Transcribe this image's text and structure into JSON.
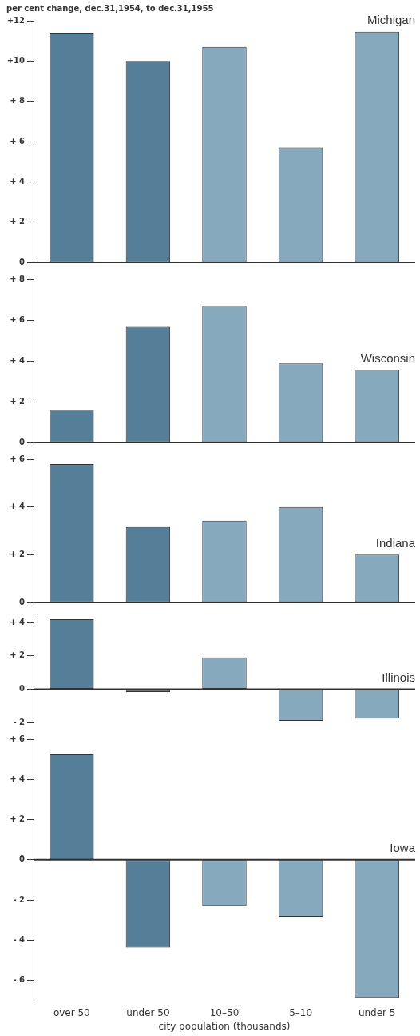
{
  "chart_data": [
    {
      "type": "bar",
      "title": "Michigan",
      "ylabel": "per cent change, dec.31,1954, to dec.31,1955",
      "categories": [
        null,
        null,
        null,
        null,
        null
      ],
      "values": [
        11.4,
        10.0,
        10.7,
        5.7,
        11.45
      ],
      "colors": [
        "#557f99",
        "#557f99",
        "#86a9bd",
        "#86a9bd",
        "#86a9bd"
      ],
      "ylim": [
        0,
        12
      ],
      "yticks": [
        {
          "value": 0,
          "label": "0"
        },
        {
          "value": 2,
          "label": "+ 2"
        },
        {
          "value": 4,
          "label": "+ 4"
        },
        {
          "value": 6,
          "label": "+ 6"
        },
        {
          "value": 8,
          "label": "+ 8"
        },
        {
          "value": 10,
          "label": "+10"
        },
        {
          "value": 12,
          "label": "+12"
        }
      ],
      "tick_labels": "y",
      "legend": false
    },
    {
      "type": "bar",
      "title": "Wisconsin",
      "categories": [
        null,
        null,
        null,
        null,
        null
      ],
      "values": [
        1.6,
        5.67,
        6.7,
        3.87,
        3.57
      ],
      "colors": [
        "#557f99",
        "#557f99",
        "#86a9bd",
        "#86a9bd",
        "#86a9bd"
      ],
      "ylim": [
        0,
        8
      ],
      "yticks": [
        {
          "value": 0,
          "label": "0"
        },
        {
          "value": 2,
          "label": "+ 2"
        },
        {
          "value": 4,
          "label": "+ 4"
        },
        {
          "value": 6,
          "label": "+ 6"
        },
        {
          "value": 8,
          "label": "+ 8"
        }
      ],
      "tick_labels": "y",
      "legend": false
    },
    {
      "type": "bar",
      "title": "Indiana",
      "categories": [
        null,
        null,
        null,
        null,
        null
      ],
      "values": [
        5.8,
        3.16,
        3.43,
        4.0,
        2.0
      ],
      "colors": [
        "#557f99",
        "#557f99",
        "#86a9bd",
        "#86a9bd",
        "#86a9bd"
      ],
      "ylim": [
        0,
        6
      ],
      "yticks": [
        {
          "value": 0,
          "label": "0"
        },
        {
          "value": 2,
          "label": "+ 2"
        },
        {
          "value": 4,
          "label": "+ 4"
        },
        {
          "value": 6,
          "label": "+ 6"
        }
      ],
      "tick_labels": "y",
      "legend": false
    },
    {
      "type": "bar",
      "title": "Illinois",
      "categories": [
        null,
        null,
        null,
        null,
        null
      ],
      "values": [
        4.2,
        -0.17,
        1.9,
        -1.9,
        -1.77
      ],
      "colors": [
        "#557f99",
        "#557f99",
        "#86a9bd",
        "#86a9bd",
        "#86a9bd"
      ],
      "ylim": [
        -2,
        4.2
      ],
      "yticks": [
        {
          "value": -2,
          "label": "- 2"
        },
        {
          "value": 0,
          "label": "0"
        },
        {
          "value": 2,
          "label": "+ 2"
        },
        {
          "value": 4,
          "label": "+ 4"
        }
      ],
      "tick_labels": "y",
      "legend": false
    },
    {
      "type": "bar",
      "title": "Iowa",
      "xlabel": "city population (thousands)",
      "categories": [
        "over 50",
        "under 50",
        "10–50",
        "5–10",
        "under 5"
      ],
      "values": [
        5.24,
        -4.37,
        -2.29,
        -2.83,
        -6.86
      ],
      "colors": [
        "#557f99",
        "#557f99",
        "#86a9bd",
        "#86a9bd",
        "#86a9bd"
      ],
      "ylim": [
        -6.9,
        6
      ],
      "yticks": [
        {
          "value": -6,
          "label": "- 6"
        },
        {
          "value": -4,
          "label": "- 4"
        },
        {
          "value": -2,
          "label": "- 2"
        },
        {
          "value": 0,
          "label": "0"
        },
        {
          "value": 2,
          "label": "+ 2"
        },
        {
          "value": 4,
          "label": "+ 4"
        },
        {
          "value": 6,
          "label": "+ 6"
        }
      ],
      "legend": false
    }
  ]
}
